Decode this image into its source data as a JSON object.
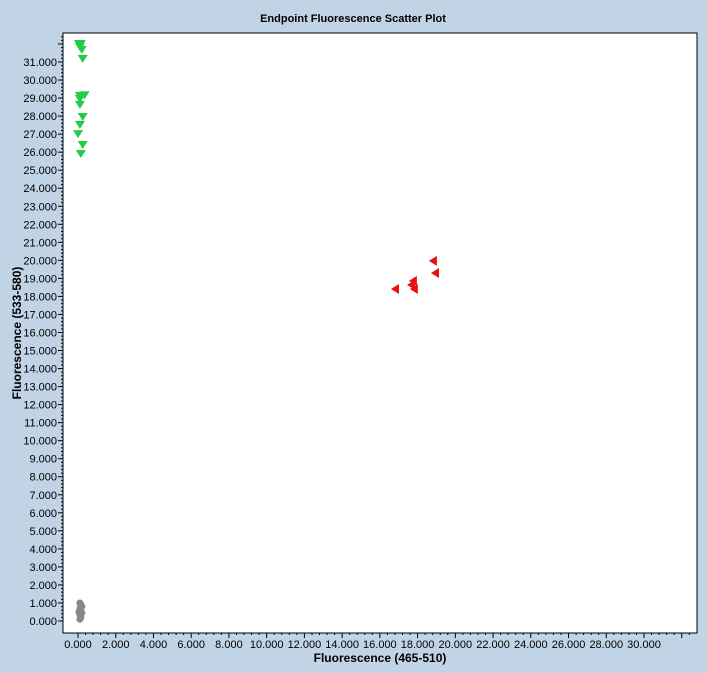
{
  "chart_data": {
    "type": "scatter",
    "title": "Endpoint Fluorescence Scatter Plot",
    "xlabel": "Fluorescence (465-510)",
    "ylabel": "Fluorescence (533-580)",
    "xlim": [
      -800,
      32800
    ],
    "ylim": [
      -700,
      32600
    ],
    "xticks": [
      "0.000",
      "2.000",
      "4.000",
      "6.000",
      "8.000",
      "10.000",
      "12.000",
      "14.000",
      "16.000",
      "18.000",
      "20.000",
      "22.000",
      "24.000",
      "26.000",
      "28.000",
      "30.000"
    ],
    "yticks": [
      "0.000",
      "1.000",
      "2.000",
      "3.000",
      "4.000",
      "5.000",
      "6.000",
      "7.000",
      "8.000",
      "9.000",
      "10.000",
      "11.000",
      "12.000",
      "13.000",
      "14.000",
      "15.000",
      "16.000",
      "17.000",
      "18.000",
      "19.000",
      "20.000",
      "21.000",
      "22.000",
      "23.000",
      "24.000",
      "25.000",
      "26.000",
      "27.000",
      "28.000",
      "29.000",
      "30.000",
      "31.000"
    ],
    "grid": false,
    "series": [
      {
        "marker": "triangle-down",
        "color": "#22cc44",
        "x": [
          50,
          150,
          100,
          200,
          250,
          100,
          350,
          100,
          100,
          250,
          100,
          0,
          250,
          150
        ],
        "y": [
          32000,
          32000,
          31830,
          31670,
          31170,
          29120,
          29150,
          28950,
          28620,
          27950,
          27510,
          27000,
          26400,
          25900
        ]
      },
      {
        "marker": "triangle-left",
        "color": "#e81010",
        "x": [
          18810,
          18920,
          17750,
          17650,
          17800,
          16800
        ],
        "y": [
          19970,
          19300,
          18860,
          18640,
          18410,
          18410
        ]
      },
      {
        "marker": "circle",
        "color": "#888888",
        "x": [
          100,
          150,
          200,
          100,
          150,
          50,
          200,
          100,
          150,
          100
        ],
        "y": [
          1000,
          900,
          800,
          700,
          550,
          500,
          450,
          350,
          200,
          100
        ]
      }
    ]
  }
}
